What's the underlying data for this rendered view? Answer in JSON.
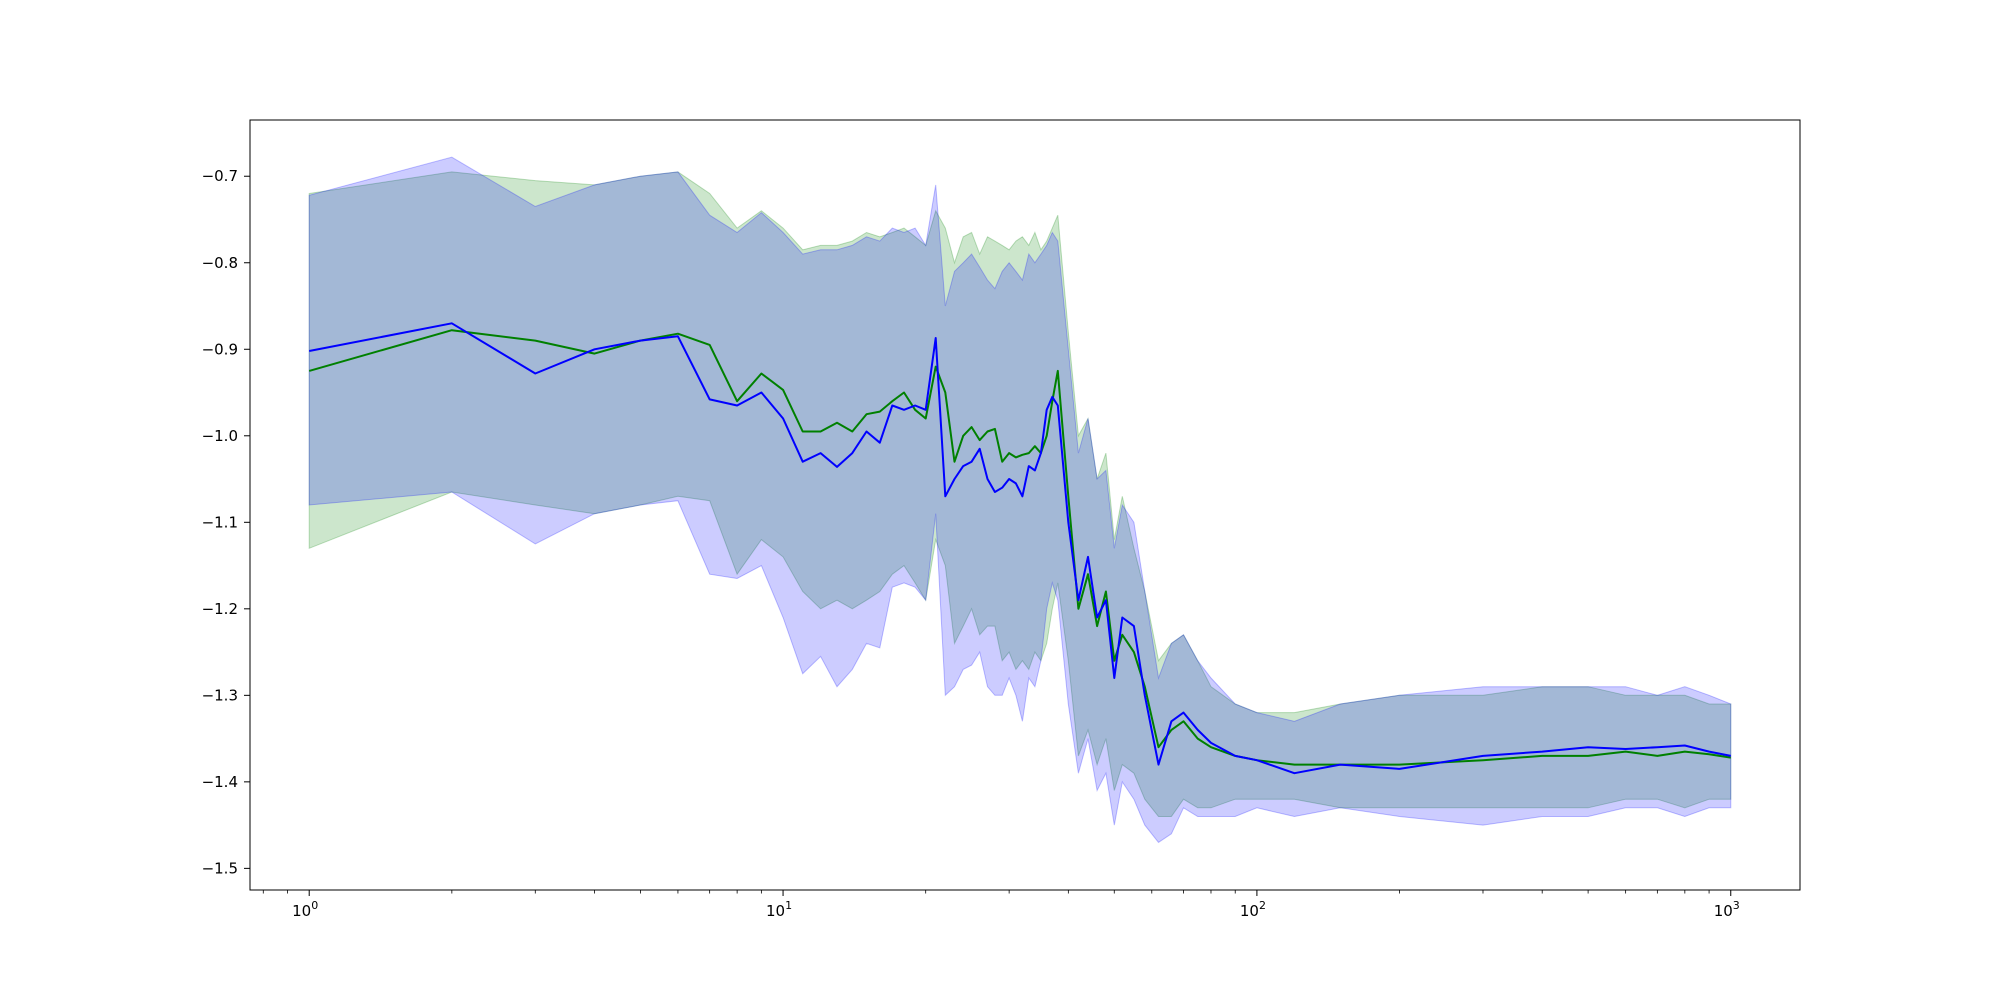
{
  "chart_data": {
    "type": "line",
    "title": "",
    "xlabel": "",
    "ylabel": "",
    "xscale": "log",
    "xlim": [
      0.75,
      1400
    ],
    "ylim": [
      -1.525,
      -0.635
    ],
    "grid": false,
    "x_ticks": [
      {
        "base": "10",
        "exp": "0",
        "value": 1
      },
      {
        "base": "10",
        "exp": "1",
        "value": 10
      },
      {
        "base": "10",
        "exp": "2",
        "value": 100
      },
      {
        "base": "10",
        "exp": "3",
        "value": 1000
      }
    ],
    "y_ticks": [
      "-0.7",
      "-0.8",
      "-0.9",
      "-1.0",
      "-1.1",
      "-1.2",
      "-1.3",
      "-1.4",
      "-1.5"
    ],
    "series": [
      {
        "color": "#008000",
        "band_color": "#008000",
        "band_opacity": 0.2,
        "x": [
          1,
          2,
          3,
          4,
          5,
          6,
          7,
          8,
          9,
          10,
          11,
          12,
          13,
          14,
          15,
          16,
          17,
          18,
          19,
          20,
          21,
          22,
          23,
          24,
          25,
          26,
          27,
          28,
          29,
          30,
          31,
          32,
          33,
          34,
          35,
          36,
          37,
          38,
          40,
          42,
          44,
          46,
          48,
          50,
          52,
          55,
          58,
          62,
          66,
          70,
          75,
          80,
          90,
          100,
          120,
          150,
          200,
          300,
          400,
          500,
          600,
          700,
          800,
          900,
          1000
        ],
        "y": [
          -0.925,
          -0.878,
          -0.89,
          -0.905,
          -0.89,
          -0.882,
          -0.895,
          -0.96,
          -0.928,
          -0.947,
          -0.995,
          -0.995,
          -0.985,
          -0.995,
          -0.975,
          -0.972,
          -0.96,
          -0.95,
          -0.97,
          -0.98,
          -0.92,
          -0.95,
          -1.03,
          -1.0,
          -0.99,
          -1.005,
          -0.995,
          -0.992,
          -1.03,
          -1.02,
          -1.025,
          -1.022,
          -1.02,
          -1.012,
          -1.02,
          -1.0,
          -0.96,
          -0.925,
          -1.07,
          -1.2,
          -1.16,
          -1.22,
          -1.18,
          -1.26,
          -1.23,
          -1.25,
          -1.29,
          -1.36,
          -1.34,
          -1.33,
          -1.35,
          -1.36,
          -1.37,
          -1.375,
          -1.38,
          -1.38,
          -1.38,
          -1.375,
          -1.37,
          -1.37,
          -1.365,
          -1.37,
          -1.365,
          -1.368,
          -1.372
        ],
        "y_upper": [
          -0.72,
          -0.695,
          -0.705,
          -0.71,
          -0.7,
          -0.695,
          -0.72,
          -0.76,
          -0.74,
          -0.76,
          -0.785,
          -0.78,
          -0.78,
          -0.775,
          -0.765,
          -0.77,
          -0.765,
          -0.76,
          -0.77,
          -0.78,
          -0.74,
          -0.76,
          -0.8,
          -0.77,
          -0.765,
          -0.79,
          -0.77,
          -0.775,
          -0.78,
          -0.785,
          -0.775,
          -0.77,
          -0.78,
          -0.765,
          -0.785,
          -0.775,
          -0.76,
          -0.745,
          -0.88,
          -1.0,
          -0.98,
          -1.05,
          -1.02,
          -1.12,
          -1.07,
          -1.13,
          -1.18,
          -1.26,
          -1.24,
          -1.23,
          -1.26,
          -1.29,
          -1.31,
          -1.32,
          -1.32,
          -1.31,
          -1.3,
          -1.3,
          -1.29,
          -1.29,
          -1.3,
          -1.3,
          -1.3,
          -1.31,
          -1.31
        ],
        "y_lower": [
          -1.13,
          -1.065,
          -1.08,
          -1.09,
          -1.08,
          -1.07,
          -1.075,
          -1.16,
          -1.12,
          -1.14,
          -1.18,
          -1.2,
          -1.19,
          -1.2,
          -1.19,
          -1.18,
          -1.16,
          -1.15,
          -1.17,
          -1.19,
          -1.12,
          -1.15,
          -1.24,
          -1.22,
          -1.2,
          -1.23,
          -1.22,
          -1.22,
          -1.26,
          -1.25,
          -1.27,
          -1.26,
          -1.27,
          -1.25,
          -1.26,
          -1.24,
          -1.2,
          -1.17,
          -1.26,
          -1.37,
          -1.34,
          -1.38,
          -1.35,
          -1.41,
          -1.38,
          -1.39,
          -1.42,
          -1.44,
          -1.44,
          -1.42,
          -1.43,
          -1.43,
          -1.42,
          -1.42,
          -1.42,
          -1.43,
          -1.43,
          -1.43,
          -1.43,
          -1.43,
          -1.42,
          -1.42,
          -1.43,
          -1.42,
          -1.42
        ]
      },
      {
        "color": "#0000ff",
        "band_color": "#0000ff",
        "band_opacity": 0.2,
        "x": [
          1,
          2,
          3,
          4,
          5,
          6,
          7,
          8,
          9,
          10,
          11,
          12,
          13,
          14,
          15,
          16,
          17,
          18,
          19,
          20,
          21,
          22,
          23,
          24,
          25,
          26,
          27,
          28,
          29,
          30,
          31,
          32,
          33,
          34,
          35,
          36,
          37,
          38,
          40,
          42,
          44,
          46,
          48,
          50,
          52,
          55,
          58,
          62,
          66,
          70,
          75,
          80,
          90,
          100,
          120,
          150,
          200,
          300,
          400,
          500,
          600,
          700,
          800,
          900,
          1000
        ],
        "y": [
          -0.902,
          -0.87,
          -0.928,
          -0.9,
          -0.89,
          -0.885,
          -0.958,
          -0.965,
          -0.95,
          -0.98,
          -1.03,
          -1.02,
          -1.036,
          -1.02,
          -0.995,
          -1.008,
          -0.965,
          -0.97,
          -0.965,
          -0.97,
          -0.887,
          -1.07,
          -1.05,
          -1.035,
          -1.03,
          -1.015,
          -1.05,
          -1.065,
          -1.06,
          -1.05,
          -1.055,
          -1.07,
          -1.035,
          -1.04,
          -1.02,
          -0.97,
          -0.955,
          -0.965,
          -1.1,
          -1.19,
          -1.14,
          -1.21,
          -1.19,
          -1.28,
          -1.21,
          -1.22,
          -1.3,
          -1.38,
          -1.33,
          -1.32,
          -1.34,
          -1.355,
          -1.37,
          -1.375,
          -1.39,
          -1.38,
          -1.385,
          -1.37,
          -1.365,
          -1.36,
          -1.362,
          -1.36,
          -1.358,
          -1.365,
          -1.37
        ],
        "y_upper": [
          -0.722,
          -0.678,
          -0.735,
          -0.71,
          -0.7,
          -0.695,
          -0.745,
          -0.765,
          -0.742,
          -0.765,
          -0.79,
          -0.785,
          -0.785,
          -0.78,
          -0.77,
          -0.775,
          -0.76,
          -0.765,
          -0.76,
          -0.78,
          -0.71,
          -0.85,
          -0.81,
          -0.8,
          -0.79,
          -0.805,
          -0.82,
          -0.83,
          -0.81,
          -0.8,
          -0.81,
          -0.82,
          -0.79,
          -0.8,
          -0.79,
          -0.78,
          -0.765,
          -0.775,
          -0.9,
          -1.02,
          -0.98,
          -1.05,
          -1.04,
          -1.13,
          -1.08,
          -1.1,
          -1.18,
          -1.28,
          -1.24,
          -1.23,
          -1.26,
          -1.28,
          -1.31,
          -1.32,
          -1.33,
          -1.31,
          -1.3,
          -1.29,
          -1.29,
          -1.29,
          -1.29,
          -1.3,
          -1.29,
          -1.3,
          -1.31
        ],
        "y_lower": [
          -1.08,
          -1.065,
          -1.125,
          -1.09,
          -1.08,
          -1.075,
          -1.16,
          -1.165,
          -1.15,
          -1.21,
          -1.275,
          -1.255,
          -1.29,
          -1.27,
          -1.24,
          -1.245,
          -1.175,
          -1.17,
          -1.175,
          -1.19,
          -1.09,
          -1.3,
          -1.29,
          -1.27,
          -1.265,
          -1.25,
          -1.29,
          -1.3,
          -1.3,
          -1.28,
          -1.3,
          -1.33,
          -1.28,
          -1.29,
          -1.26,
          -1.2,
          -1.17,
          -1.19,
          -1.31,
          -1.39,
          -1.35,
          -1.41,
          -1.39,
          -1.45,
          -1.4,
          -1.42,
          -1.45,
          -1.47,
          -1.46,
          -1.43,
          -1.44,
          -1.44,
          -1.44,
          -1.43,
          -1.44,
          -1.43,
          -1.44,
          -1.45,
          -1.44,
          -1.44,
          -1.43,
          -1.43,
          -1.44,
          -1.43,
          -1.43
        ]
      }
    ]
  }
}
